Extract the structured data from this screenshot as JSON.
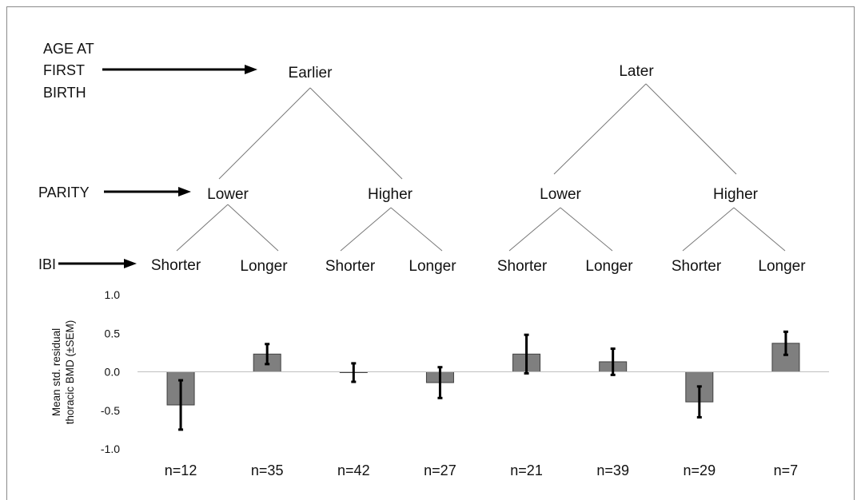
{
  "tree": {
    "row_labels": {
      "age": [
        "AGE AT",
        "FIRST",
        "BIRTH"
      ],
      "parity": "PARITY",
      "ibi": "IBI"
    },
    "age_nodes": [
      "Earlier",
      "Later"
    ],
    "parity_nodes": [
      "Lower",
      "Higher",
      "Lower",
      "Higher"
    ],
    "ibi_nodes": [
      "Shorter",
      "Longer",
      "Shorter",
      "Longer",
      "Shorter",
      "Longer",
      "Shorter",
      "Longer"
    ]
  },
  "chart_data": {
    "type": "bar",
    "ylabel_lines": [
      "Mean std. residual",
      "thoracic BMD (±SEM)"
    ],
    "ylim": [
      -1.0,
      1.0
    ],
    "yticks": [
      "1.0",
      "0.5",
      "0.0",
      "-0.5",
      "-1.0"
    ],
    "ytick_values": [
      1.0,
      0.5,
      0.0,
      -0.5,
      -1.0
    ],
    "categories": [
      "n=12",
      "n=35",
      "n=42",
      "n=27",
      "n=21",
      "n=39",
      "n=29",
      "n=7"
    ],
    "values": [
      -0.43,
      0.23,
      -0.01,
      -0.14,
      0.23,
      0.13,
      -0.39,
      0.37
    ],
    "errors": [
      0.32,
      0.13,
      0.12,
      0.2,
      0.25,
      0.17,
      0.2,
      0.15
    ],
    "grid": false,
    "bar_color": "#7f7f7f",
    "bar_edge_color": "#404040",
    "error_color": "#000000"
  }
}
